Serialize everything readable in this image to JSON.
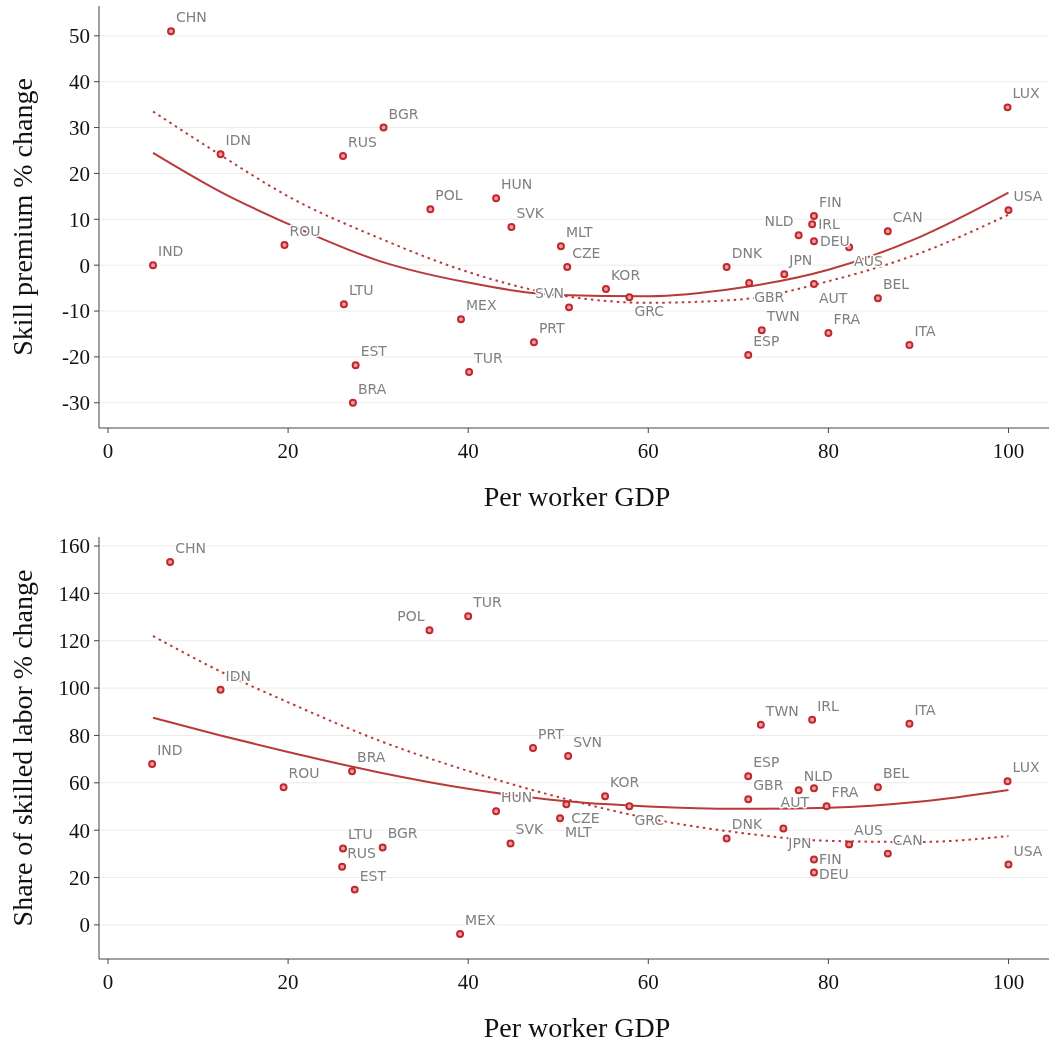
{
  "chart_data": [
    {
      "type": "scatter",
      "xlabel": "Per worker GDP",
      "ylabel": "Skill premium % change",
      "xlim": [
        -1,
        104.5
      ],
      "ylim": [
        -35.5,
        56.5
      ],
      "xticks": [
        0,
        20,
        40,
        60,
        80,
        100
      ],
      "yticks": [
        -30,
        -20,
        -10,
        0,
        10,
        20,
        30,
        40,
        50
      ],
      "grid": "y",
      "series": [
        {
          "type": "scatter",
          "color": "#c0282d",
          "marker": "circle",
          "x": [
            7.0,
            12.5,
            26.1,
            30.6,
            5.0,
            19.6,
            35.8,
            43.1,
            44.8,
            26.2,
            39.2,
            27.5,
            27.2,
            40.1,
            47.3,
            50.3,
            51.0,
            51.2,
            55.3,
            57.9,
            68.7,
            71.2,
            71.1,
            72.6,
            75.1,
            76.7,
            78.4,
            78.2,
            78.4,
            78.4,
            82.3,
            86.6,
            85.5,
            80.0,
            89.0,
            99.9,
            100.0
          ],
          "values": [
            51,
            24.2,
            23.8,
            30,
            0,
            4.4,
            12.2,
            14.6,
            8.3,
            -8.5,
            -11.8,
            -21.8,
            -30,
            -23.3,
            -16.8,
            4.1,
            -0.4,
            -9.2,
            -5.2,
            -7.0,
            -0.4,
            -3.9,
            -19.6,
            -14.2,
            -2.0,
            6.5,
            10.7,
            8.9,
            5.2,
            -4.1,
            3.9,
            7.4,
            -7.2,
            -14.8,
            -17.4,
            34.4,
            12.0
          ],
          "value_labels": [
            "CHN",
            "IDN",
            "RUS",
            "BGR",
            "IND",
            "ROU",
            "POL",
            "HUN",
            "SVK",
            "LTU",
            "MEX",
            "EST",
            "BRA",
            "TUR",
            "PRT",
            "MLT",
            "CZE",
            "SVN",
            "KOR",
            "GRC",
            "DNK",
            "GBR",
            "ESP",
            "TWN",
            "JPN",
            "NLD",
            "FIN",
            "IRL",
            "DEU",
            "AUT",
            "AUS",
            "CAN",
            "BEL",
            "FRA",
            "ITA",
            "LUX",
            "USA"
          ]
        },
        {
          "type": "line",
          "color": "#b83a3a",
          "line_style": "solid",
          "marker": "none",
          "x": [
            5,
            12.5,
            20,
            30,
            40,
            50,
            60,
            70,
            80,
            90,
            100
          ],
          "values": [
            24.5,
            16,
            9,
            1,
            -3.8,
            -6.5,
            -6.8,
            -5,
            -1,
            6,
            15.8
          ]
        },
        {
          "type": "line",
          "color": "#b83a3a",
          "line_style": "dotted",
          "marker": "none",
          "x": [
            5,
            12.5,
            20,
            30,
            40,
            50,
            60,
            70,
            80,
            90,
            100
          ],
          "values": [
            33.5,
            24,
            15,
            6,
            -1.5,
            -6.5,
            -8.2,
            -7.5,
            -3.5,
            2.5,
            11
          ]
        }
      ]
    },
    {
      "type": "scatter",
      "xlabel": "Per worker GDP",
      "ylabel": "Share of skilled labor % change",
      "xlim": [
        -1,
        104.5
      ],
      "ylim": [
        -14.4,
        163.8
      ],
      "xticks": [
        0,
        20,
        40,
        60,
        80,
        100
      ],
      "yticks": [
        0,
        20,
        40,
        60,
        80,
        100,
        120,
        140,
        160
      ],
      "grid": "y",
      "series": [
        {
          "type": "scatter",
          "color": "#c0282d",
          "marker": "circle",
          "x": [
            6.9,
            40.0,
            35.7,
            12.5,
            4.9,
            19.5,
            27.1,
            47.2,
            51.1,
            43.1,
            44.7,
            26.1,
            30.5,
            26.0,
            27.4,
            39.1,
            50.2,
            50.9,
            55.2,
            57.9,
            68.7,
            71.1,
            71.1,
            72.5,
            78.2,
            89.0,
            76.7,
            78.4,
            79.8,
            75.0,
            85.5,
            99.9,
            82.3,
            78.4,
            78.4,
            86.6,
            100.0
          ],
          "values": [
            153.2,
            130.3,
            124.4,
            99.3,
            67.9,
            58.1,
            64.9,
            74.7,
            71.3,
            48.0,
            34.4,
            32.3,
            32.7,
            24.6,
            14.9,
            -3.8,
            45.0,
            50.9,
            54.3,
            50.1,
            36.5,
            62.8,
            53.1,
            84.5,
            86.6,
            84.9,
            56.9,
            57.7,
            50.1,
            40.7,
            58.1,
            60.7,
            34.0,
            27.6,
            22.1,
            30.1,
            25.5
          ],
          "value_labels": [
            "CHN",
            "TUR",
            "POL",
            "IDN",
            "IND",
            "ROU",
            "BRA",
            "PRT",
            "SVN",
            "HUN",
            "SVK",
            "LTU",
            "BGR",
            "RUS",
            "EST",
            "MEX",
            "MLT",
            "CZE",
            "KOR",
            "GRC",
            "DNK",
            "ESP",
            "GBR",
            "TWN",
            "IRL",
            "ITA",
            "NLD",
            "AUT",
            "FRA",
            "JPN",
            "BEL",
            "LUX",
            "AUS",
            "DEU",
            "FIN",
            "CAN",
            "USA"
          ]
        },
        {
          "type": "line",
          "color": "#b83a3a",
          "line_style": "solid",
          "marker": "none",
          "x": [
            5,
            12.5,
            20,
            30,
            40,
            50,
            60,
            70,
            80,
            90,
            100
          ],
          "values": [
            87.5,
            80,
            73,
            64.5,
            57.5,
            52.5,
            50,
            49,
            49.5,
            52,
            57
          ]
        },
        {
          "type": "line",
          "color": "#b83a3a",
          "line_style": "dotted",
          "marker": "none",
          "x": [
            5,
            12.5,
            20,
            30,
            40,
            50,
            60,
            70,
            80,
            90,
            100
          ],
          "values": [
            122,
            107,
            94,
            78,
            65,
            54,
            45,
            39,
            35.5,
            35,
            37.5
          ]
        }
      ]
    }
  ]
}
